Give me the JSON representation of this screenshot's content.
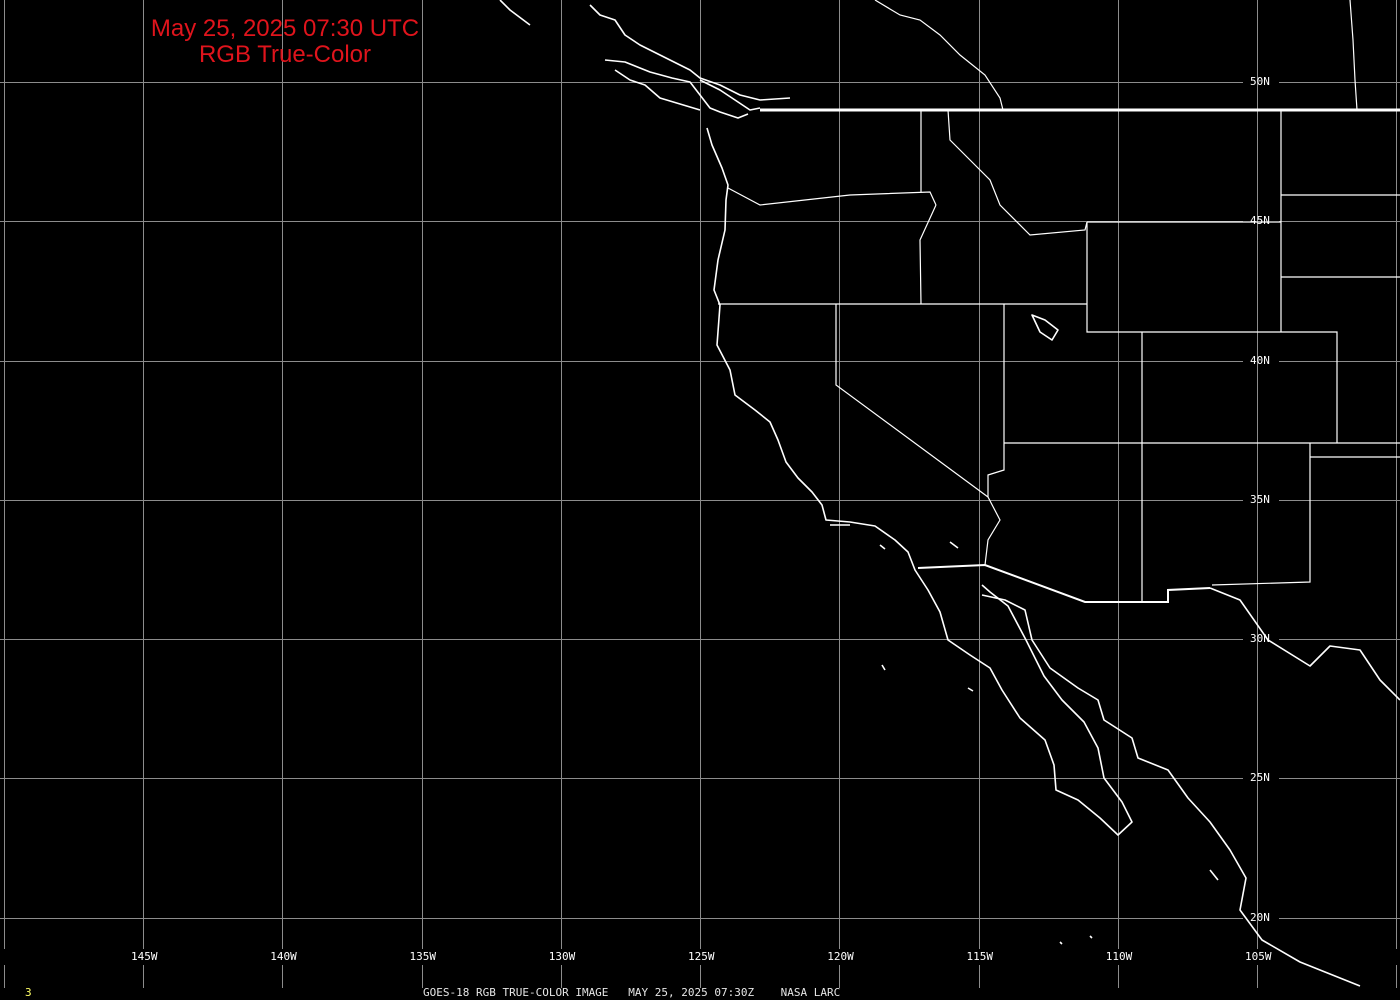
{
  "header": {
    "line1": "May 25, 2025 07:30 UTC",
    "line2": "RGB True-Color"
  },
  "footer": {
    "frame_number": "3",
    "caption": "GOES-18 RGB TRUE-COLOR IMAGE   MAY 25, 2025 07:30Z    NASA LARC"
  },
  "grid": {
    "longitudes": [
      -150,
      -145,
      -140,
      -135,
      -130,
      -125,
      -120,
      -115,
      -110,
      -105,
      -100
    ],
    "latitudes": [
      50,
      45,
      40,
      35,
      30,
      25,
      20
    ],
    "lon_labels": [
      {
        "lon": -145,
        "text": "145W"
      },
      {
        "lon": -140,
        "text": "140W"
      },
      {
        "lon": -135,
        "text": "135W"
      },
      {
        "lon": -130,
        "text": "130W"
      },
      {
        "lon": -125,
        "text": "125W"
      },
      {
        "lon": -120,
        "text": "120W"
      },
      {
        "lon": -115,
        "text": "115W"
      },
      {
        "lon": -110,
        "text": "110W"
      },
      {
        "lon": -105,
        "text": "105W"
      }
    ],
    "lat_labels": [
      {
        "lat": 50,
        "text": "50N"
      },
      {
        "lat": 45,
        "text": "45N"
      },
      {
        "lat": 40,
        "text": "40N"
      },
      {
        "lat": 35,
        "text": "35N"
      },
      {
        "lat": 30,
        "text": "30N"
      },
      {
        "lat": 25,
        "text": "25N"
      },
      {
        "lat": 20,
        "text": "20N"
      }
    ],
    "label_lat_column": -105,
    "label_lon_row": 18.5
  },
  "colors": {
    "background": "#000000",
    "grid": "#8c8c8c",
    "coastline": "#ffffff",
    "title": "#e0141c",
    "footer": "#e6e6e6",
    "frame_number": "#ffff66"
  }
}
